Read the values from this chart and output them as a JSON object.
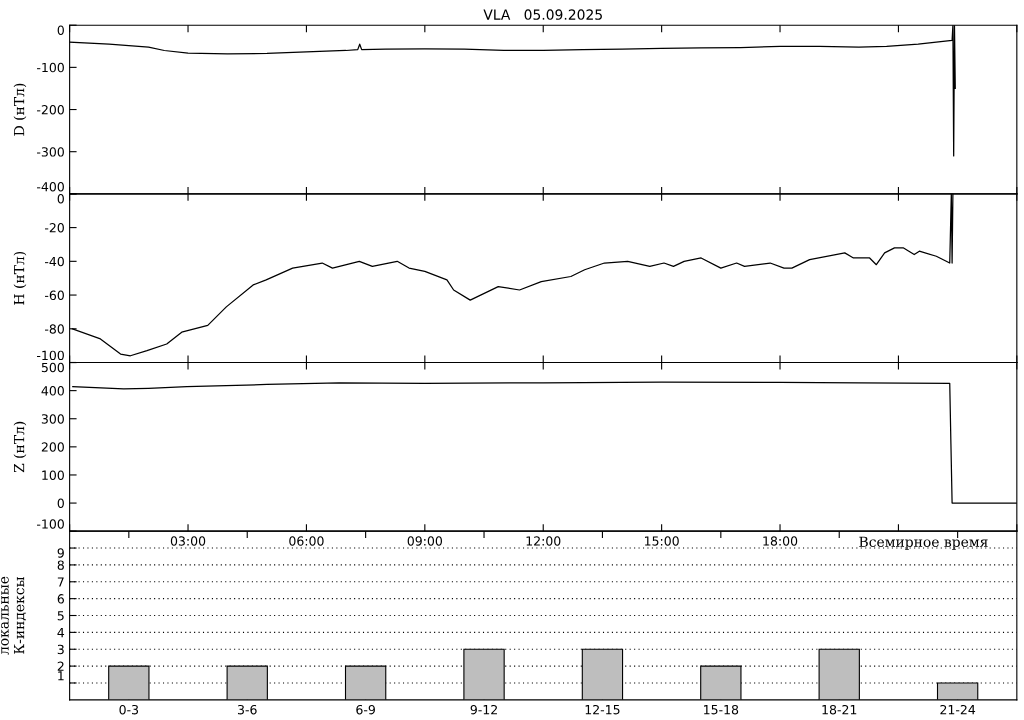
{
  "chart_data": [
    {
      "type": "line",
      "title": "VLA   05.09.2025",
      "ylabel": "D (нТл)",
      "xlim": [
        0,
        24
      ],
      "ylim": [
        -400,
        0
      ],
      "yticks": [
        -400,
        -300,
        -200,
        -100,
        0
      ],
      "xticks": [
        0,
        3,
        6,
        9,
        12,
        15,
        18,
        21,
        24
      ],
      "tick_labels": "y",
      "series": [
        {
          "color": "#000000",
          "x": [
            0,
            1,
            2,
            2.4,
            3,
            4,
            5,
            6,
            7,
            7.3,
            7.35,
            7.4,
            8,
            9,
            10,
            11,
            12,
            13,
            14,
            15,
            16,
            17,
            18,
            19,
            20,
            20.7,
            21.5,
            22.36,
            22.38,
            22.4,
            22.42,
            22.44
          ],
          "values": [
            -40,
            -45,
            -52,
            -60,
            -66,
            -68,
            -67,
            -63,
            -60,
            -58,
            -45,
            -58,
            -57,
            -56,
            -57,
            -60,
            -60,
            -58,
            -57,
            -55,
            -54,
            -53,
            -50,
            -50,
            -52,
            -50,
            -45,
            -36,
            0,
            -310,
            0,
            -150
          ]
        }
      ]
    },
    {
      "type": "line",
      "ylabel": "H (нТл)",
      "xlim": [
        0,
        24
      ],
      "ylim": [
        -100,
        0
      ],
      "yticks": [
        -100,
        -80,
        -60,
        -40,
        -20,
        0
      ],
      "xticks": [
        0,
        3,
        6,
        9,
        12,
        15,
        18,
        21,
        24
      ],
      "tick_labels": "y",
      "series": [
        {
          "color": "#000000",
          "x": [
            0.07,
            0.78,
            1.29,
            1.54,
            1.96,
            2.46,
            2.84,
            3.5,
            3.97,
            4.65,
            4.98,
            5.65,
            6.4,
            6.66,
            7.34,
            7.67,
            8.3,
            8.6,
            9.0,
            9.56,
            9.73,
            10.15,
            10.86,
            11.4,
            11.95,
            12.7,
            13.05,
            13.55,
            14.14,
            14.7,
            15.06,
            15.3,
            15.57,
            16.0,
            16.5,
            16.9,
            17.1,
            17.75,
            18.1,
            18.3,
            18.75,
            19.64,
            19.86,
            20.27,
            20.44,
            20.65,
            20.9,
            21.12,
            21.4,
            21.53,
            21.96,
            22.3,
            22.34,
            22.36,
            22.38
          ],
          "values": [
            -80,
            -86,
            -95,
            -96,
            -93,
            -89,
            -82,
            -78,
            -67,
            -54,
            -51,
            -44,
            -41,
            -44,
            -40,
            -43,
            -40,
            -44,
            -46,
            -51,
            -57,
            -63,
            -55,
            -57,
            -52,
            -49,
            -45,
            -41,
            -40,
            -43,
            -41,
            -43,
            -40,
            -38,
            -44,
            -41,
            -43,
            -41,
            -44,
            -44,
            -39,
            -35,
            -38,
            -38,
            -42,
            -35,
            -32,
            -32,
            -36,
            -34,
            -37,
            -41,
            0,
            -41,
            0
          ]
        }
      ]
    },
    {
      "type": "line",
      "ylabel": "Z (нТл)",
      "xlim": [
        0,
        24
      ],
      "ylim": [
        -100,
        500
      ],
      "yticks": [
        -100,
        0,
        100,
        200,
        300,
        400,
        500
      ],
      "xticks": [
        {
          "value": 0,
          "label": null
        },
        {
          "value": 3,
          "label": "03:00"
        },
        {
          "value": 6,
          "label": "06:00"
        },
        {
          "value": 9,
          "label": "09:00"
        },
        {
          "value": 12,
          "label": "12:00"
        },
        {
          "value": 15,
          "label": "15:00"
        },
        {
          "value": 18,
          "label": "18:00"
        },
        {
          "value": 21,
          "label": null
        },
        {
          "value": 24,
          "label": null
        }
      ],
      "xlabel": "Всемирное время",
      "series": [
        {
          "color": "#000000",
          "x": [
            0.08,
            1.37,
            2.0,
            2.97,
            5.0,
            6.83,
            9,
            12,
            15,
            18,
            20,
            22.3,
            22.33,
            22.36,
            24
          ],
          "values": [
            414,
            406,
            408,
            414,
            422,
            428,
            426,
            428,
            430,
            429,
            428,
            426,
            210,
            0,
            0
          ]
        }
      ]
    },
    {
      "type": "bar",
      "ylabel": "локальные\nК-индексы",
      "categories": [
        "0-3",
        "3-6",
        "6-9",
        "9-12",
        "12-15",
        "15-18",
        "18-21",
        "21-24"
      ],
      "values": [
        2,
        2,
        2,
        3,
        3,
        2,
        3,
        1
      ],
      "color": "#bebebe",
      "ylim": [
        0,
        10
      ],
      "yticks": [
        1,
        2,
        3,
        4,
        5,
        6,
        7,
        8,
        9
      ],
      "grid": "y"
    }
  ]
}
